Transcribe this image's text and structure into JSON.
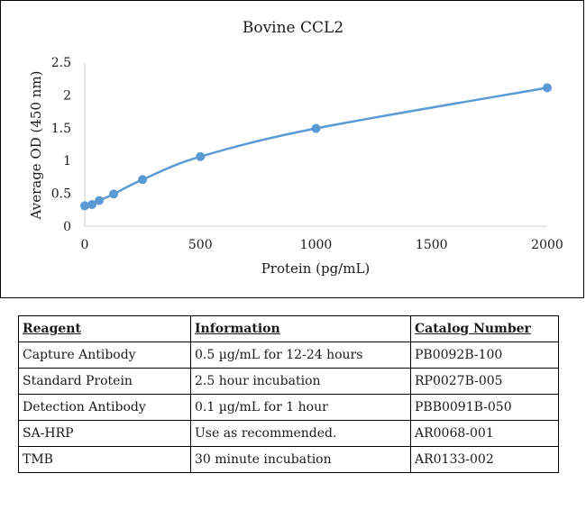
{
  "chart_data": {
    "type": "line",
    "title": "Bovine CCL2",
    "xlabel": "Protein (pg/mL)",
    "ylabel": "Average OD (450 nm)",
    "xlim": [
      0,
      2000
    ],
    "ylim": [
      0,
      2.5
    ],
    "x_ticks": [
      0,
      500,
      1000,
      1500,
      2000
    ],
    "y_ticks": [
      0,
      0.5,
      1,
      1.5,
      2,
      2.5
    ],
    "x_tick_labels": [
      "0",
      "500",
      "1000",
      "1500",
      "2000"
    ],
    "y_tick_labels": [
      "0",
      "0.5",
      "1",
      "1.5",
      "2",
      "2.5"
    ],
    "grid": false,
    "series_color": "#5b9bd5",
    "series": [
      {
        "x": [
          0,
          31.25,
          62.5,
          125,
          250,
          500,
          1000,
          2000
        ],
        "y": [
          0.31,
          0.33,
          0.39,
          0.49,
          0.71,
          1.06,
          1.49,
          2.11
        ]
      }
    ]
  },
  "table": {
    "headers": [
      "Reagent",
      "Information",
      "Catalog Number"
    ],
    "rows": [
      [
        "Capture Antibody",
        "0.5 µg/mL for 12-24 hours",
        "PB0092B-100"
      ],
      [
        "Standard Protein",
        "2.5 hour incubation",
        "RP0027B-005"
      ],
      [
        "Detection Antibody",
        "0.1 µg/mL for 1 hour",
        "PBB0091B-050"
      ],
      [
        "SA-HRP",
        "Use as recommended.",
        "AR0068-001"
      ],
      [
        "TMB",
        "30 minute incubation",
        "AR0133-002"
      ]
    ]
  }
}
